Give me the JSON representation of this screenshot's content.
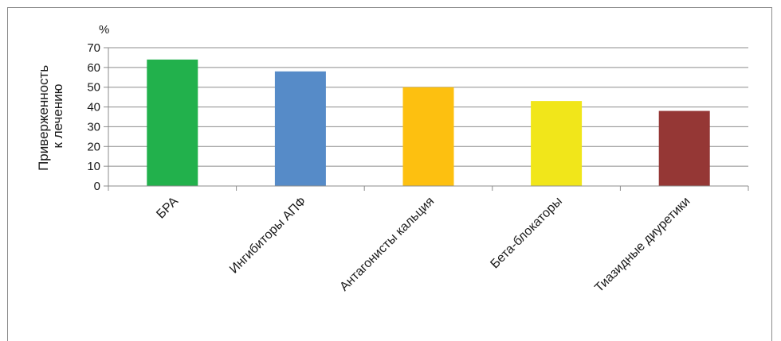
{
  "chart_data": {
    "type": "bar",
    "unit": "%",
    "ylabel_lines": [
      "Приверженность",
      "к лечению"
    ],
    "categories": [
      "БРА",
      "Ингибиторы АПФ",
      "Антагонисты кальция",
      "Бета-блокаторы",
      "Тиазидные диуретики"
    ],
    "values": [
      64,
      58,
      50,
      43,
      38
    ],
    "colors": [
      "#22b14c",
      "#568bc8",
      "#fdc010",
      "#f1e61a",
      "#953735"
    ],
    "ylim": [
      0,
      70
    ],
    "yticks": [
      0,
      10,
      20,
      30,
      40,
      50,
      60,
      70
    ],
    "grid": true,
    "grid_color": "#8c8c8c",
    "axis_color": "#8c8c8c"
  }
}
